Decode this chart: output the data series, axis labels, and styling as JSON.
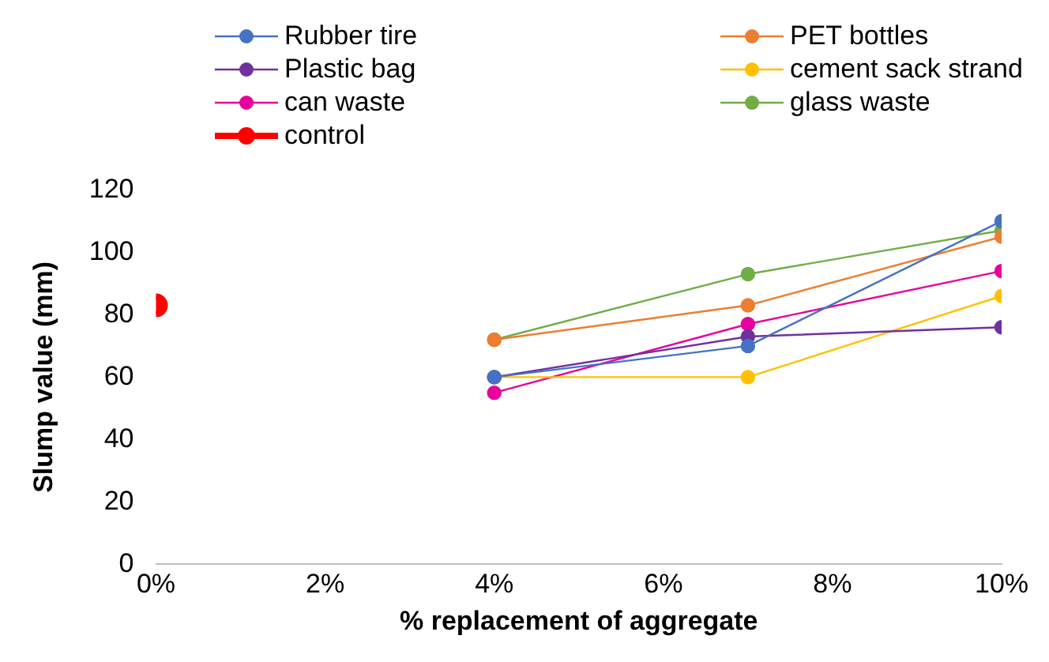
{
  "chart_data": {
    "type": "line",
    "xlabel": "% replacement of aggregate",
    "ylabel": "Slump value (mm)",
    "xlim": [
      0,
      10
    ],
    "xticks": [
      {
        "value": 0,
        "label": "0%"
      },
      {
        "value": 2,
        "label": "2%"
      },
      {
        "value": 4,
        "label": "4%"
      },
      {
        "value": 6,
        "label": "6%"
      },
      {
        "value": 8,
        "label": "8%"
      },
      {
        "value": 10,
        "label": "10%"
      }
    ],
    "ylim": [
      0,
      120
    ],
    "yticks": [
      0,
      20,
      40,
      60,
      80,
      100,
      120
    ],
    "grid": false,
    "legend": "top",
    "marker": "circle",
    "line_style": "solid",
    "series": [
      {
        "name": "Rubber tire",
        "color": "#4472c4",
        "x": [
          4,
          7,
          10
        ],
        "values": [
          60,
          70,
          110
        ]
      },
      {
        "name": "PET bottles",
        "color": "#ed7d31",
        "x": [
          4,
          7,
          10
        ],
        "values": [
          72,
          83,
          105
        ]
      },
      {
        "name": "Plastic bag",
        "color": "#7030a0",
        "x": [
          4,
          7,
          10
        ],
        "values": [
          60,
          73,
          76
        ]
      },
      {
        "name": "cement sack strand",
        "color": "#ffc000",
        "x": [
          4,
          7,
          10
        ],
        "values": [
          60,
          60,
          86
        ]
      },
      {
        "name": "can waste",
        "color": "#e6009e",
        "x": [
          4,
          7,
          10
        ],
        "values": [
          55,
          77,
          94
        ]
      },
      {
        "name": "glass waste",
        "color": "#70ad47",
        "x": [
          4,
          7,
          10
        ],
        "values": [
          72,
          93,
          107
        ]
      },
      {
        "name": "control",
        "color": "#ff0000",
        "x": [
          0
        ],
        "values": [
          83
        ]
      }
    ]
  }
}
